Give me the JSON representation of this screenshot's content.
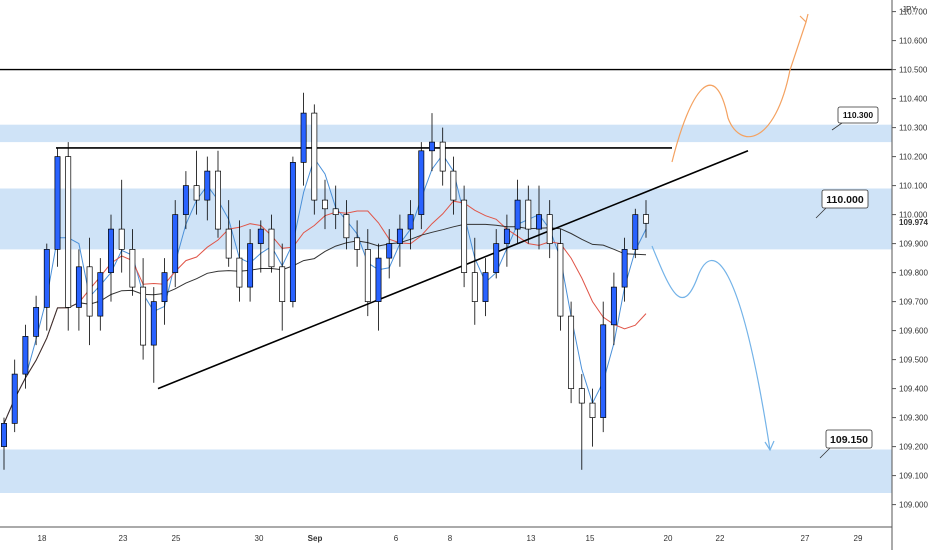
{
  "chart_data": {
    "type": "candlestick",
    "currency": "JPY",
    "y_range": [
      108.94,
      110.74
    ],
    "y_ticks": [
      "110.700",
      "110.600",
      "110.500",
      "110.400",
      "110.300",
      "110.200",
      "110.100",
      "110.000",
      "109.900",
      "109.800",
      "109.700",
      "109.600",
      "109.500",
      "109.400",
      "109.300",
      "109.200",
      "109.100",
      "109.000"
    ],
    "x_ticks": [
      "18",
      "23",
      "25",
      "30",
      "Sep",
      "6",
      "8",
      "13",
      "15",
      "20",
      "22",
      "27",
      "29"
    ],
    "last_price": "109.974",
    "price_labels": [
      "110.300",
      "110.000",
      "109.150"
    ],
    "zones": [
      [
        110.25,
        110.31
      ],
      [
        109.88,
        110.09
      ],
      [
        109.04,
        109.19
      ]
    ],
    "levels": [
      110.5
    ],
    "colors": {
      "up": "#2962ff",
      "zone": "#cfe3f7",
      "projection_up": "#f4a261",
      "projection_down": "#74b3e8",
      "ma_red": "#e05548",
      "ma_dark": "#333333",
      "ma_blue": "#4a90d9"
    },
    "candles_ohlc": [
      [
        109.2,
        109.3,
        109.12,
        109.28
      ],
      [
        109.28,
        109.5,
        109.25,
        109.45
      ],
      [
        109.45,
        109.62,
        109.4,
        109.58
      ],
      [
        109.58,
        109.72,
        109.55,
        109.68
      ],
      [
        109.68,
        109.9,
        109.6,
        109.88
      ],
      [
        109.88,
        110.23,
        109.82,
        110.2
      ],
      [
        110.2,
        110.25,
        109.6,
        109.68
      ],
      [
        109.68,
        109.88,
        109.6,
        109.82
      ],
      [
        109.82,
        109.92,
        109.55,
        109.65
      ],
      [
        109.65,
        109.85,
        109.6,
        109.8
      ],
      [
        109.8,
        110.0,
        109.7,
        109.95
      ],
      [
        109.95,
        110.12,
        109.8,
        109.88
      ],
      [
        109.88,
        109.95,
        109.72,
        109.75
      ],
      [
        109.75,
        109.85,
        109.5,
        109.55
      ],
      [
        109.55,
        109.75,
        109.42,
        109.7
      ],
      [
        109.7,
        109.85,
        109.62,
        109.8
      ],
      [
        109.8,
        110.05,
        109.75,
        110.0
      ],
      [
        110.0,
        110.15,
        109.95,
        110.1
      ],
      [
        110.1,
        110.22,
        110.0,
        110.05
      ],
      [
        110.05,
        110.2,
        109.98,
        110.15
      ],
      [
        110.15,
        110.22,
        109.92,
        109.95
      ],
      [
        109.95,
        110.05,
        109.82,
        109.85
      ],
      [
        109.85,
        109.98,
        109.7,
        109.75
      ],
      [
        109.75,
        109.95,
        109.7,
        109.9
      ],
      [
        109.9,
        109.98,
        109.8,
        109.95
      ],
      [
        109.95,
        110.0,
        109.8,
        109.82
      ],
      [
        109.82,
        109.9,
        109.6,
        109.7
      ],
      [
        109.7,
        110.2,
        109.68,
        110.18
      ],
      [
        110.18,
        110.42,
        110.1,
        110.35
      ],
      [
        110.35,
        110.38,
        110.0,
        110.05
      ],
      [
        110.05,
        110.12,
        109.95,
        110.02
      ],
      [
        110.02,
        110.1,
        109.95,
        110.0
      ],
      [
        110.0,
        110.05,
        109.88,
        109.92
      ],
      [
        109.92,
        109.98,
        109.82,
        109.88
      ],
      [
        109.88,
        109.95,
        109.65,
        109.7
      ],
      [
        109.7,
        109.9,
        109.6,
        109.85
      ],
      [
        109.85,
        109.95,
        109.78,
        109.9
      ],
      [
        109.9,
        110.0,
        109.82,
        109.95
      ],
      [
        109.95,
        110.05,
        109.88,
        110.0
      ],
      [
        110.0,
        110.25,
        109.95,
        110.22
      ],
      [
        110.22,
        110.35,
        110.15,
        110.25
      ],
      [
        110.25,
        110.3,
        110.1,
        110.15
      ],
      [
        110.15,
        110.2,
        110.0,
        110.05
      ],
      [
        110.05,
        110.1,
        109.75,
        109.8
      ],
      [
        109.8,
        109.92,
        109.62,
        109.7
      ],
      [
        109.7,
        109.85,
        109.65,
        109.8
      ],
      [
        109.8,
        109.95,
        109.78,
        109.9
      ],
      [
        109.9,
        110.0,
        109.82,
        109.95
      ],
      [
        109.95,
        110.12,
        109.9,
        110.05
      ],
      [
        110.05,
        110.1,
        109.9,
        109.95
      ],
      [
        109.95,
        110.1,
        109.88,
        110.0
      ],
      [
        110.0,
        110.05,
        109.85,
        109.9
      ],
      [
        109.9,
        109.95,
        109.6,
        109.65
      ],
      [
        109.65,
        109.7,
        109.35,
        109.4
      ],
      [
        109.4,
        109.45,
        109.12,
        109.35
      ],
      [
        109.35,
        109.4,
        109.2,
        109.3
      ],
      [
        109.3,
        109.7,
        109.25,
        109.62
      ],
      [
        109.62,
        109.8,
        109.55,
        109.75
      ],
      [
        109.75,
        109.92,
        109.7,
        109.88
      ],
      [
        109.88,
        110.02,
        109.85,
        110.0
      ],
      [
        110.0,
        110.05,
        109.92,
        109.97
      ]
    ]
  }
}
